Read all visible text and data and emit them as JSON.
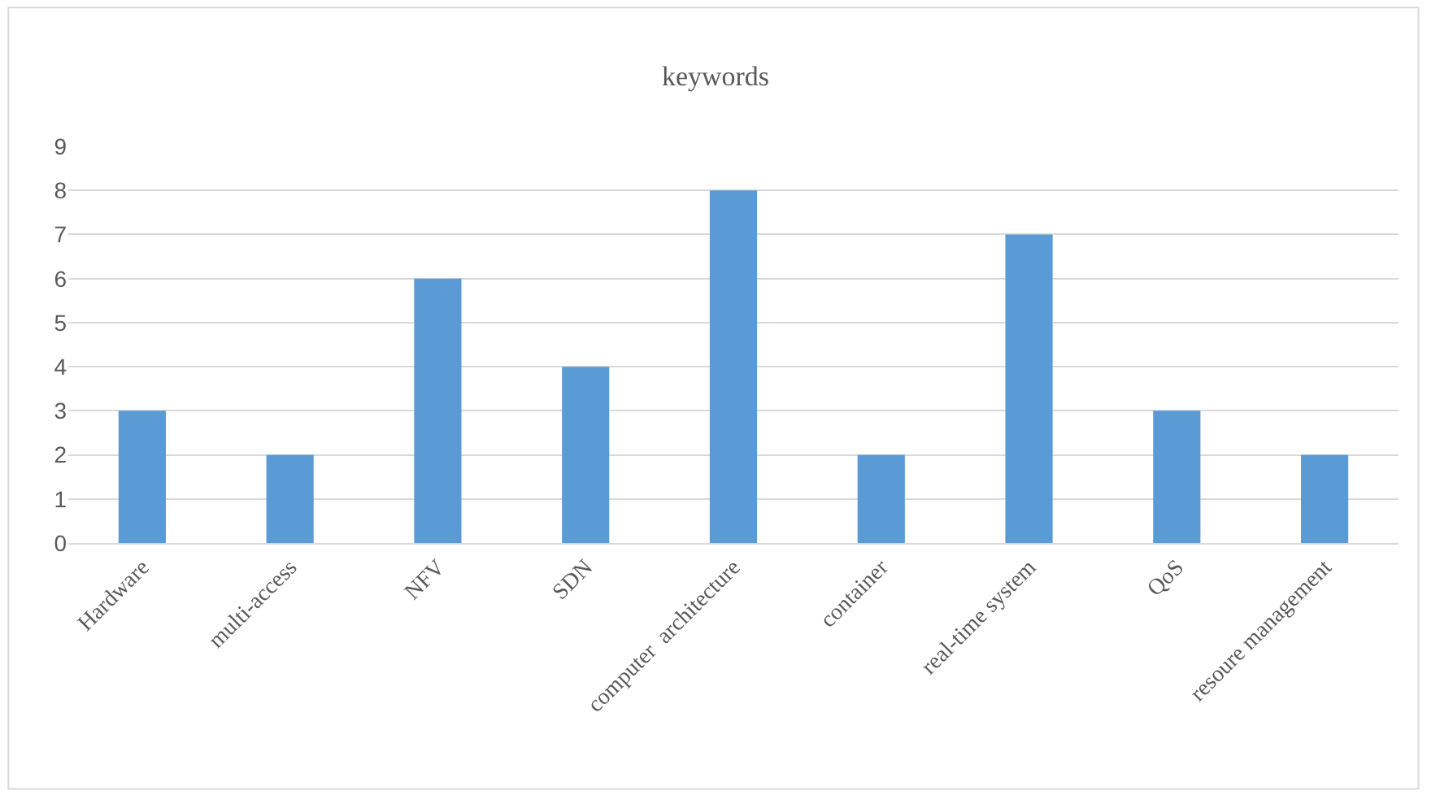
{
  "chart_data": {
    "type": "bar",
    "title": "keywords",
    "categories": [
      "Hardware",
      "multi-access",
      "NFV",
      "SDN",
      "computer  architecture",
      "container",
      "real-time system",
      "QoS",
      "resoure management"
    ],
    "values": [
      3,
      2,
      6,
      4,
      8,
      2,
      7,
      3,
      2
    ],
    "color": "#5b9bd5",
    "ylim": [
      0,
      9
    ],
    "yticks": [
      0,
      1,
      2,
      3,
      4,
      5,
      6,
      7,
      8,
      9
    ],
    "grid": "y"
  }
}
